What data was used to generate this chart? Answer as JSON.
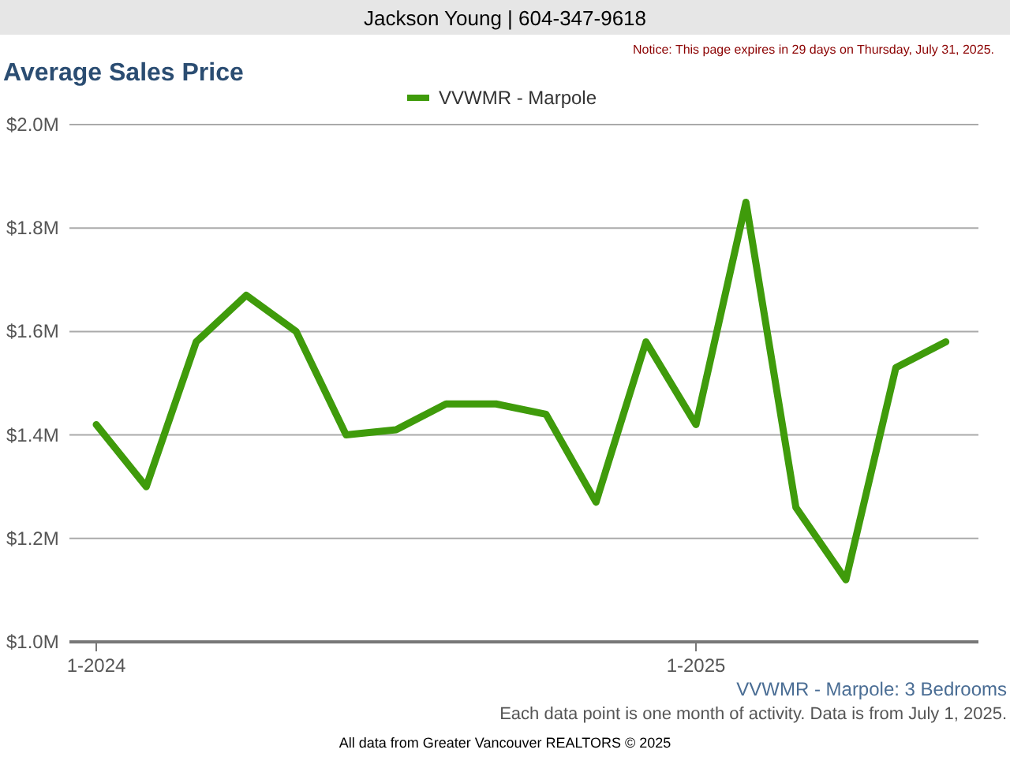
{
  "chart_data": {
    "type": "line",
    "title": "Average Sales Price",
    "subtitle": "VVWMR - Marpole: 3 Bedrooms",
    "annotations": [
      "Jackson Young | 604-347-9618",
      "Notice: This page expires in 29 days on Thursday, July 31, 2025.",
      "Each data point is one month of activity. Data is from July 1, 2025.",
      "All data from Greater Vancouver REALTORS © 2025"
    ],
    "categories": [
      "1-2024",
      null,
      null,
      null,
      null,
      null,
      null,
      null,
      null,
      null,
      null,
      null,
      "1-2025",
      null,
      null,
      null,
      null,
      null
    ],
    "series": [
      {
        "name": "VVWMR - Marpole",
        "color": "#3f9b0b",
        "values": [
          1.42,
          1.3,
          1.58,
          1.67,
          1.6,
          1.4,
          1.41,
          1.46,
          1.46,
          1.44,
          1.27,
          1.58,
          1.42,
          1.85,
          1.26,
          1.12,
          1.53,
          1.58
        ]
      }
    ],
    "ylim": [
      1.0,
      2.0
    ],
    "yticks": [
      {
        "value": 1.0,
        "label": "$1.0M"
      },
      {
        "value": 1.2,
        "label": "$1.2M"
      },
      {
        "value": 1.4,
        "label": "$1.4M"
      },
      {
        "value": 1.6,
        "label": "$1.6M"
      },
      {
        "value": 1.8,
        "label": "$1.8M"
      },
      {
        "value": 2.0,
        "label": "$2.0M"
      }
    ],
    "grid": "y",
    "legend": "top",
    "marker": "none",
    "line_style": "solid"
  }
}
